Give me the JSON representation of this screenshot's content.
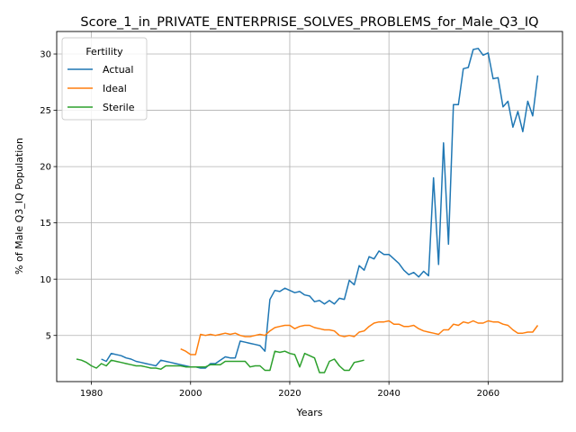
{
  "chart_data": {
    "type": "line",
    "title": "Score_1_in_PRIVATE_ENTERPRISE_SOLVES_PROBLEMS_for_Male_Q3_IQ",
    "xlabel": "Years",
    "ylabel": "% of Male Q3_IQ Population",
    "xlim": [
      1973,
      2075
    ],
    "ylim": [
      0.9,
      32.0
    ],
    "xticks": [
      1980,
      2000,
      2020,
      2040,
      2060
    ],
    "yticks": [
      5,
      10,
      15,
      20,
      25,
      30
    ],
    "grid": true,
    "legend": {
      "title": "Fertility",
      "placement": "top-left"
    },
    "series": [
      {
        "name": "Actual",
        "color": "#1f77b4",
        "x": [
          1982,
          1983,
          1984,
          1986,
          1987,
          1988,
          1989,
          1990,
          1991,
          1992,
          1993,
          1994,
          1995,
          1996,
          1997,
          1998,
          1999,
          2000,
          2001,
          2002,
          2003,
          2004,
          2005,
          2006,
          2007,
          2008,
          2009,
          2010,
          2011,
          2012,
          2013,
          2014,
          2015,
          2016,
          2017,
          2018,
          2019,
          2020,
          2021,
          2022,
          2023,
          2024,
          2025,
          2026,
          2027,
          2028,
          2029,
          2030,
          2031,
          2032,
          2033,
          2034,
          2035,
          2036,
          2037,
          2038,
          2039,
          2040,
          2041,
          2042,
          2043,
          2044,
          2045,
          2046,
          2047,
          2048,
          2049,
          2050,
          2051,
          2052,
          2053,
          2054,
          2055,
          2056,
          2057,
          2058,
          2059,
          2060,
          2061,
          2062,
          2063,
          2064,
          2065,
          2066,
          2067,
          2068,
          2069,
          2070
        ],
        "y": [
          2.9,
          2.7,
          3.4,
          3.2,
          3.0,
          2.9,
          2.7,
          2.6,
          2.5,
          2.4,
          2.3,
          2.8,
          2.7,
          2.6,
          2.5,
          2.4,
          2.3,
          2.2,
          2.2,
          2.1,
          2.1,
          2.5,
          2.5,
          2.8,
          3.1,
          3.0,
          3.0,
          4.5,
          4.4,
          4.3,
          4.2,
          4.1,
          3.6,
          8.2,
          9.0,
          8.9,
          9.2,
          9.0,
          8.8,
          8.9,
          8.6,
          8.5,
          8.0,
          8.1,
          7.8,
          8.1,
          7.8,
          8.3,
          8.2,
          9.9,
          9.5,
          11.2,
          10.8,
          12.0,
          11.8,
          12.5,
          12.2,
          12.2,
          11.8,
          11.4,
          10.8,
          10.4,
          10.6,
          10.2,
          10.7,
          10.3,
          19.0,
          11.3,
          22.1,
          13.1,
          25.5,
          25.5,
          28.7,
          28.8,
          30.4,
          30.5,
          29.9,
          30.1,
          27.8,
          27.9,
          25.3,
          25.8,
          23.5,
          24.9,
          23.1,
          25.8,
          24.5,
          28.1
        ]
      },
      {
        "name": "Ideal",
        "color": "#ff7f0e",
        "x": [
          1998,
          1999,
          2000,
          2001,
          2002,
          2003,
          2004,
          2005,
          2006,
          2007,
          2008,
          2009,
          2010,
          2011,
          2012,
          2013,
          2014,
          2015,
          2016,
          2017,
          2018,
          2019,
          2020,
          2021,
          2022,
          2023,
          2024,
          2025,
          2026,
          2027,
          2028,
          2029,
          2030,
          2031,
          2032,
          2033,
          2034,
          2035,
          2036,
          2037,
          2038,
          2039,
          2040,
          2041,
          2042,
          2043,
          2044,
          2045,
          2046,
          2047,
          2048,
          2049,
          2050,
          2051,
          2052,
          2053,
          2054,
          2055,
          2056,
          2057,
          2058,
          2059,
          2060,
          2061,
          2062,
          2063,
          2064,
          2065,
          2066,
          2067,
          2068,
          2069,
          2070
        ],
        "y": [
          3.8,
          3.6,
          3.3,
          3.3,
          5.1,
          5.0,
          5.1,
          5.0,
          5.1,
          5.2,
          5.1,
          5.2,
          5.0,
          4.9,
          4.9,
          5.0,
          5.1,
          5.0,
          5.4,
          5.7,
          5.8,
          5.9,
          5.9,
          5.6,
          5.8,
          5.9,
          5.9,
          5.7,
          5.6,
          5.5,
          5.5,
          5.4,
          5.0,
          4.9,
          5.0,
          4.9,
          5.3,
          5.4,
          5.8,
          6.1,
          6.2,
          6.2,
          6.3,
          6.0,
          6.0,
          5.8,
          5.8,
          5.9,
          5.6,
          5.4,
          5.3,
          5.2,
          5.1,
          5.5,
          5.5,
          6.0,
          5.9,
          6.2,
          6.1,
          6.3,
          6.1,
          6.1,
          6.3,
          6.2,
          6.2,
          6.0,
          5.9,
          5.5,
          5.2,
          5.2,
          5.3,
          5.3,
          5.9
        ]
      },
      {
        "name": "Sterile",
        "color": "#2ca02c",
        "x": [
          1977,
          1978,
          1979,
          1980,
          1981,
          1982,
          1983,
          1984,
          1985,
          1986,
          1987,
          1988,
          1989,
          1990,
          1991,
          1992,
          1993,
          1994,
          1995,
          1996,
          1997,
          1998,
          1999,
          2000,
          2001,
          2002,
          2003,
          2004,
          2005,
          2006,
          2007,
          2008,
          2009,
          2010,
          2011,
          2012,
          2013,
          2014,
          2015,
          2016,
          2017,
          2018,
          2019,
          2020,
          2021,
          2022,
          2023,
          2024,
          2025,
          2026,
          2027,
          2028,
          2029,
          2030,
          2031,
          2032,
          2033,
          2034,
          2035
        ],
        "y": [
          2.9,
          2.8,
          2.6,
          2.3,
          2.1,
          2.5,
          2.3,
          2.8,
          2.7,
          2.6,
          2.5,
          2.4,
          2.3,
          2.3,
          2.2,
          2.1,
          2.1,
          2.0,
          2.3,
          2.3,
          2.3,
          2.3,
          2.2,
          2.2,
          2.2,
          2.2,
          2.2,
          2.4,
          2.4,
          2.4,
          2.7,
          2.7,
          2.7,
          2.7,
          2.7,
          2.2,
          2.3,
          2.3,
          1.9,
          1.9,
          3.6,
          3.5,
          3.6,
          3.4,
          3.3,
          2.2,
          3.4,
          3.2,
          3.0,
          1.7,
          1.7,
          2.7,
          2.9,
          2.3,
          1.9,
          1.9,
          2.6,
          2.7,
          2.8
        ]
      }
    ]
  }
}
